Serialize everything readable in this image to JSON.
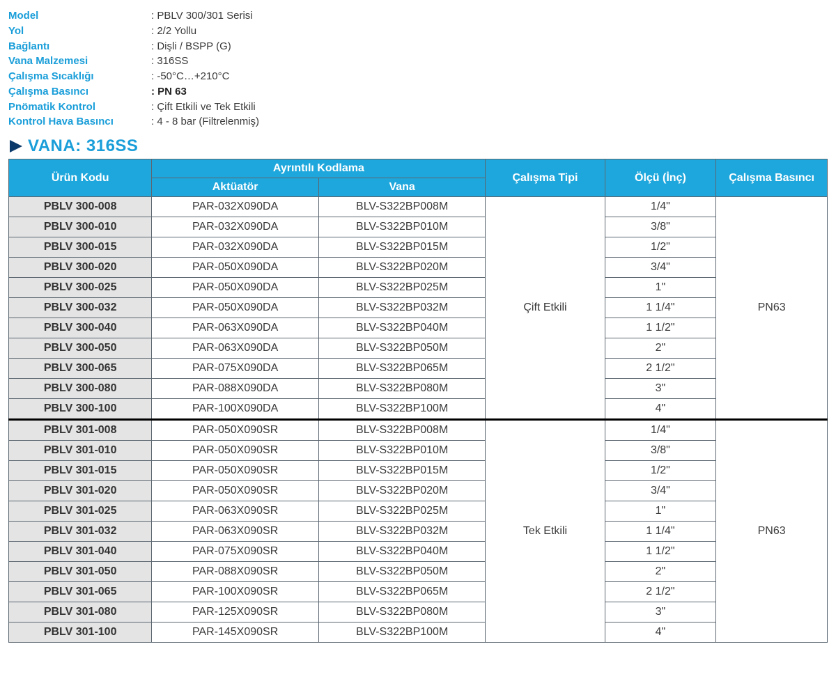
{
  "colors": {
    "accent": "#1a9ed9",
    "header_bg": "#1ea7dc",
    "header_text": "#ffffff",
    "border": "#5b6670",
    "code_bg": "#e4e4e4",
    "body_text": "#3a3a3a",
    "triangle": "#0b3a6a"
  },
  "specs": [
    {
      "label": "Model",
      "value": ": PBLV 300/301 Serisi"
    },
    {
      "label": "Yol",
      "value": ": 2/2 Yollu"
    },
    {
      "label": "Bağlantı",
      "value": ": Dişli / BSPP (G)"
    },
    {
      "label": "Vana Malzemesi",
      "value": ": 316SS"
    },
    {
      "label": "Çalışma Sıcaklığı",
      "value": ": -50°C…+210°C"
    },
    {
      "label": "Çalışma Basıncı",
      "value": ": PN 63",
      "bold": true
    },
    {
      "label": "Pnömatik Kontrol",
      "value": ": Çift Etkili ve Tek Etkili"
    },
    {
      "label": "Kontrol Hava Basıncı",
      "value": ": 4 - 8 bar (Filtrelenmiş)"
    }
  ],
  "section_title": "VANA: 316SS",
  "table": {
    "headers": {
      "code": "Ürün Kodu",
      "detail_group": "Ayrıntılı Kodlama",
      "actuator": "Aktüatör",
      "vana": "Vana",
      "type": "Çalışma Tipi",
      "size": "Ölçü (İnç)",
      "pressure": "Çalışma Basıncı"
    },
    "groups": [
      {
        "type_label": "Çift Etkili",
        "pressure_label": "PN63",
        "rows": [
          {
            "code": "PBLV 300-008",
            "actuator": "PAR-032X090DA",
            "vana": "BLV-S322BP008M",
            "size": "1/4\""
          },
          {
            "code": "PBLV 300-010",
            "actuator": "PAR-032X090DA",
            "vana": "BLV-S322BP010M",
            "size": "3/8\""
          },
          {
            "code": "PBLV 300-015",
            "actuator": "PAR-032X090DA",
            "vana": "BLV-S322BP015M",
            "size": "1/2\""
          },
          {
            "code": "PBLV 300-020",
            "actuator": "PAR-050X090DA",
            "vana": "BLV-S322BP020M",
            "size": "3/4\""
          },
          {
            "code": "PBLV 300-025",
            "actuator": "PAR-050X090DA",
            "vana": "BLV-S322BP025M",
            "size": "1\""
          },
          {
            "code": "PBLV 300-032",
            "actuator": "PAR-050X090DA",
            "vana": "BLV-S322BP032M",
            "size": "1 1/4\""
          },
          {
            "code": "PBLV 300-040",
            "actuator": "PAR-063X090DA",
            "vana": "BLV-S322BP040M",
            "size": "1 1/2\""
          },
          {
            "code": "PBLV 300-050",
            "actuator": "PAR-063X090DA",
            "vana": "BLV-S322BP050M",
            "size": "2\""
          },
          {
            "code": "PBLV 300-065",
            "actuator": "PAR-075X090DA",
            "vana": "BLV-S322BP065M",
            "size": "2 1/2\""
          },
          {
            "code": "PBLV 300-080",
            "actuator": "PAR-088X090DA",
            "vana": "BLV-S322BP080M",
            "size": "3\""
          },
          {
            "code": "PBLV 300-100",
            "actuator": "PAR-100X090DA",
            "vana": "BLV-S322BP100M",
            "size": "4\""
          }
        ]
      },
      {
        "type_label": "Tek Etkili",
        "pressure_label": "PN63",
        "rows": [
          {
            "code": "PBLV 301-008",
            "actuator": "PAR-050X090SR",
            "vana": "BLV-S322BP008M",
            "size": "1/4\""
          },
          {
            "code": "PBLV 301-010",
            "actuator": "PAR-050X090SR",
            "vana": "BLV-S322BP010M",
            "size": "3/8\""
          },
          {
            "code": "PBLV 301-015",
            "actuator": "PAR-050X090SR",
            "vana": "BLV-S322BP015M",
            "size": "1/2\""
          },
          {
            "code": "PBLV 301-020",
            "actuator": "PAR-050X090SR",
            "vana": "BLV-S322BP020M",
            "size": "3/4\""
          },
          {
            "code": "PBLV 301-025",
            "actuator": "PAR-063X090SR",
            "vana": "BLV-S322BP025M",
            "size": "1\""
          },
          {
            "code": "PBLV 301-032",
            "actuator": "PAR-063X090SR",
            "vana": "BLV-S322BP032M",
            "size": "1 1/4\""
          },
          {
            "code": "PBLV 301-040",
            "actuator": "PAR-075X090SR",
            "vana": "BLV-S322BP040M",
            "size": "1 1/2\""
          },
          {
            "code": "PBLV 301-050",
            "actuator": "PAR-088X090SR",
            "vana": "BLV-S322BP050M",
            "size": "2\""
          },
          {
            "code": "PBLV 301-065",
            "actuator": "PAR-100X090SR",
            "vana": "BLV-S322BP065M",
            "size": "2 1/2\""
          },
          {
            "code": "PBLV 301-080",
            "actuator": "PAR-125X090SR",
            "vana": "BLV-S322BP080M",
            "size": "3\""
          },
          {
            "code": "PBLV 301-100",
            "actuator": "PAR-145X090SR",
            "vana": "BLV-S322BP100M",
            "size": "4\""
          }
        ]
      }
    ]
  }
}
